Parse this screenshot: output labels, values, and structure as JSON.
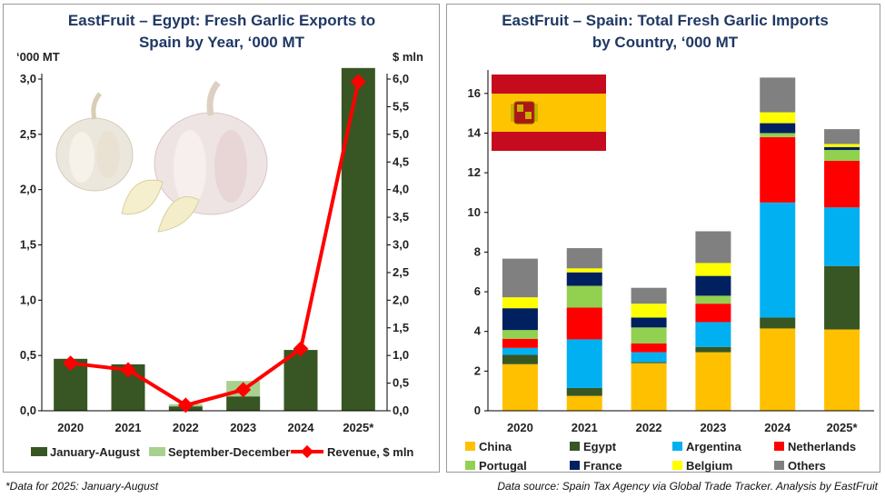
{
  "chart_data": [
    {
      "type": "bar",
      "stacked": true,
      "title_lines": [
        "EastFruit – Egypt: Fresh Garlic Exports to",
        "Spain by Year, ‘000 MT"
      ],
      "ylabel_left": "‘000 MT",
      "ylabel_right": "$ mln",
      "categories": [
        "2020",
        "2021",
        "2022",
        "2023",
        "2024",
        "2025*"
      ],
      "ylim": [
        0,
        3.0
      ],
      "ylim_right": [
        0,
        6.0
      ],
      "yticks": [
        "0,0",
        "0,5",
        "1,0",
        "1,5",
        "2,0",
        "2,5",
        "3,0"
      ],
      "yticks_right": [
        "0,0",
        "0,5",
        "1,0",
        "1,5",
        "2,0",
        "2,5",
        "3,0",
        "3,5",
        "4,0",
        "4,5",
        "5,0",
        "5,5",
        "6,0"
      ],
      "series": [
        {
          "name": "January-August",
          "color": "#375623",
          "values": [
            0.47,
            0.42,
            0.04,
            0.13,
            0.55,
            3.1
          ]
        },
        {
          "name": "September-December",
          "color": "#a9d18e",
          "values": [
            0.0,
            0.0,
            0.02,
            0.14,
            0.0,
            0.0
          ]
        },
        {
          "name": "Revenue, $ mln",
          "type": "line",
          "axis": "right",
          "color": "#ff0000",
          "values": [
            0.86,
            0.74,
            0.1,
            0.38,
            1.12,
            5.95
          ]
        }
      ],
      "legend": "bottom",
      "grid": false
    },
    {
      "type": "bar",
      "stacked": true,
      "title_lines": [
        "EastFruit – Spain: Total Fresh Garlic Imports",
        "by Country, ‘000 MT"
      ],
      "categories": [
        "2020",
        "2021",
        "2022",
        "2023",
        "2024",
        "2025*"
      ],
      "ylim": [
        0,
        17
      ],
      "yticks": [
        "0",
        "2",
        "4",
        "6",
        "8",
        "10",
        "12",
        "14",
        "16"
      ],
      "series": [
        {
          "name": "China",
          "color": "#ffc000",
          "values": [
            2.35,
            0.75,
            2.4,
            2.95,
            4.15,
            4.1
          ]
        },
        {
          "name": "Egypt",
          "color": "#375623",
          "values": [
            0.47,
            0.4,
            0.05,
            0.27,
            0.55,
            3.2
          ]
        },
        {
          "name": "Argentina",
          "color": "#00b0f0",
          "values": [
            0.35,
            2.45,
            0.5,
            1.25,
            5.8,
            2.95
          ]
        },
        {
          "name": "Netherlands",
          "color": "#ff0000",
          "values": [
            0.45,
            1.6,
            0.45,
            0.93,
            3.3,
            2.35
          ]
        },
        {
          "name": "Portugal",
          "color": "#92d050",
          "values": [
            0.45,
            1.1,
            0.8,
            0.4,
            0.2,
            0.55
          ]
        },
        {
          "name": "France",
          "color": "#002060",
          "values": [
            1.1,
            0.68,
            0.5,
            1.0,
            0.5,
            0.15
          ]
        },
        {
          "name": "Belgium",
          "color": "#ffff00",
          "values": [
            0.55,
            0.2,
            0.7,
            0.65,
            0.55,
            0.15
          ]
        },
        {
          "name": "Others",
          "color": "#808080",
          "values": [
            1.95,
            1.02,
            0.8,
            1.6,
            1.75,
            0.75
          ]
        }
      ],
      "legend": "bottom",
      "grid": false
    }
  ],
  "footnote": "*Data for 2025: January-August",
  "source": "Data source: Spain Tax Agency via Global Trade Tracker. Analysis by EastFruit"
}
